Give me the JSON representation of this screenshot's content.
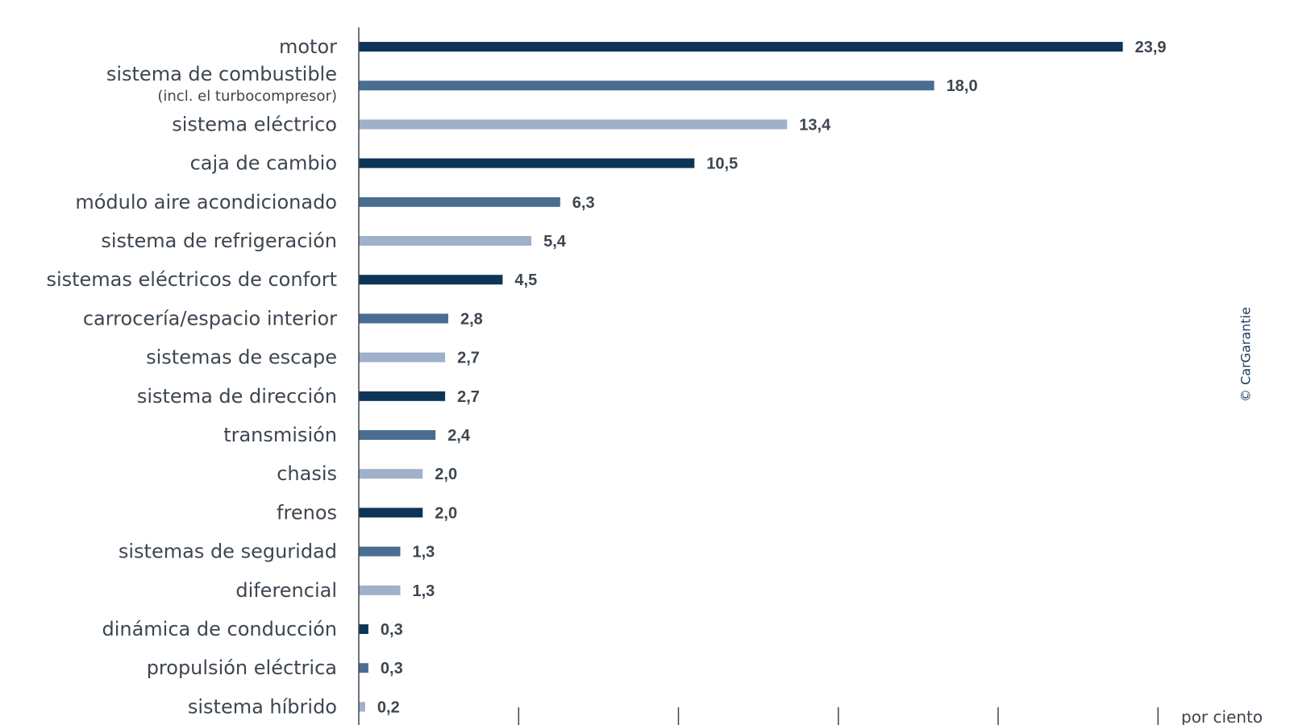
{
  "colors": {
    "dark": "#0e3557",
    "medium": "#4a6d92",
    "light": "#9fb1c8",
    "text": "#3d4650",
    "axis": "#3d4650"
  },
  "copyright": "© CarGarantie",
  "chart_data": {
    "type": "bar",
    "orientation": "horizontal",
    "title": "",
    "xlabel": "por ciento",
    "ylabel": "",
    "xlim": [
      0,
      25
    ],
    "grid": false,
    "legend": "none",
    "categories": [
      {
        "label": "motor",
        "sub": ""
      },
      {
        "label": "sistema de combustible",
        "sub": "(incl. el turbocompresor)"
      },
      {
        "label": "sistema eléctrico",
        "sub": ""
      },
      {
        "label": "caja de cambio",
        "sub": ""
      },
      {
        "label": "módulo aire acondicionado",
        "sub": ""
      },
      {
        "label": "sistema de refrigeración",
        "sub": ""
      },
      {
        "label": "sistemas eléctricos de confort",
        "sub": ""
      },
      {
        "label": "carrocería/espacio interior",
        "sub": ""
      },
      {
        "label": "sistemas de escape",
        "sub": ""
      },
      {
        "label": "sistema de dirección",
        "sub": ""
      },
      {
        "label": "transmisión",
        "sub": ""
      },
      {
        "label": "chasis",
        "sub": ""
      },
      {
        "label": "frenos",
        "sub": ""
      },
      {
        "label": "sistemas de seguridad",
        "sub": ""
      },
      {
        "label": "diferencial",
        "sub": ""
      },
      {
        "label": "dinámica de conducción",
        "sub": ""
      },
      {
        "label": "propulsión eléctrica",
        "sub": ""
      },
      {
        "label": "sistema híbrido",
        "sub": ""
      }
    ],
    "values": [
      23.9,
      18.0,
      13.4,
      10.5,
      6.3,
      5.4,
      4.5,
      2.8,
      2.7,
      2.7,
      2.4,
      2.0,
      2.0,
      1.3,
      1.3,
      0.3,
      0.3,
      0.2
    ],
    "value_labels": [
      "23,9",
      "18,0",
      "13,4",
      "10,5",
      "6,3",
      "5,4",
      "4,5",
      "2,8",
      "2,7",
      "2,7",
      "2,4",
      "2,0",
      "2,0",
      "1,3",
      "1,3",
      "0,3",
      "0,3",
      "0,2"
    ],
    "bar_shades": [
      "dark",
      "medium",
      "light",
      "dark",
      "medium",
      "light",
      "dark",
      "medium",
      "light",
      "dark",
      "medium",
      "light",
      "dark",
      "medium",
      "light",
      "dark",
      "medium",
      "light"
    ],
    "x_ticks": [
      0,
      5,
      10,
      15,
      20,
      25
    ]
  }
}
